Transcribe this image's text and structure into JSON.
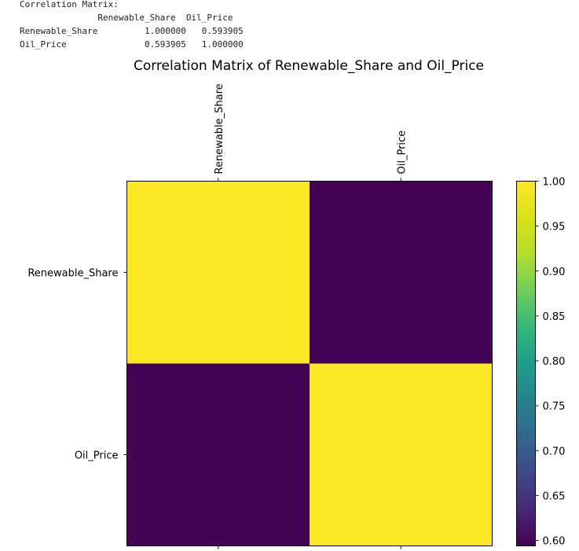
{
  "console": {
    "heading": "Correlation Matrix:",
    "header_row": "               Renewable_Share  Oil_Price",
    "rows": [
      "Renewable_Share         1.000000   0.593905",
      "Oil_Price               0.593905   1.000000"
    ]
  },
  "chart_data": {
    "type": "heatmap",
    "title": "Correlation Matrix of Renewable_Share and Oil_Price",
    "x_labels": [
      "Renewable_Share",
      "Oil_Price"
    ],
    "y_labels": [
      "Renewable_Share",
      "Oil_Price"
    ],
    "values": [
      [
        1.0,
        0.593905
      ],
      [
        0.593905,
        1.0
      ]
    ],
    "colormap": "viridis",
    "colorbar": {
      "min": 0.593905,
      "max": 1.0,
      "ticks": [
        0.6,
        0.65,
        0.7,
        0.75,
        0.8,
        0.85,
        0.9,
        0.95,
        1.0
      ],
      "tick_labels": [
        "0.60",
        "0.65",
        "0.70",
        "0.75",
        "0.80",
        "0.85",
        "0.90",
        "0.95",
        "1.00"
      ]
    },
    "x_tick_position": "top",
    "x_tick_rotation": "vertical"
  }
}
